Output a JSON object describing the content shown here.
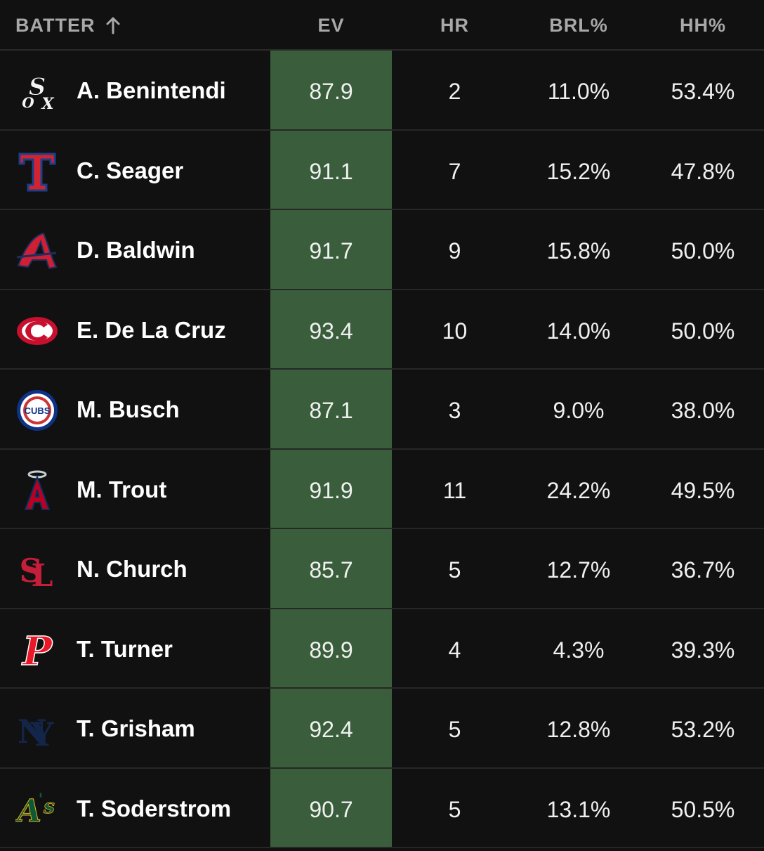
{
  "header": {
    "batter": "BATTER",
    "sort_icon": "arrow-up-icon",
    "ev": "EV",
    "hr": "HR",
    "brl": "BRL%",
    "hh": "HH%"
  },
  "colors": {
    "background": "#111111",
    "ev_highlight": "#3a5e3c",
    "header_text": "#a8a8a8",
    "row_divider": "#272727"
  },
  "rows": [
    {
      "team_logo": "white-sox-logo-icon",
      "name": "A. Benintendi",
      "ev": "87.9",
      "hr": "2",
      "brl": "11.0%",
      "hh": "53.4%"
    },
    {
      "team_logo": "rangers-logo-icon",
      "name": "C. Seager",
      "ev": "91.1",
      "hr": "7",
      "brl": "15.2%",
      "hh": "47.8%"
    },
    {
      "team_logo": "braves-logo-icon",
      "name": "D. Baldwin",
      "ev": "91.7",
      "hr": "9",
      "brl": "15.8%",
      "hh": "50.0%"
    },
    {
      "team_logo": "reds-logo-icon",
      "name": "E. De La Cruz",
      "ev": "93.4",
      "hr": "10",
      "brl": "14.0%",
      "hh": "50.0%"
    },
    {
      "team_logo": "cubs-logo-icon",
      "name": "M. Busch",
      "ev": "87.1",
      "hr": "3",
      "brl": "9.0%",
      "hh": "38.0%",
      "logo_text": "CUBS"
    },
    {
      "team_logo": "angels-logo-icon",
      "name": "M. Trout",
      "ev": "91.9",
      "hr": "11",
      "brl": "24.2%",
      "hh": "49.5%"
    },
    {
      "team_logo": "cardinals-logo-icon",
      "name": "N. Church",
      "ev": "85.7",
      "hr": "5",
      "brl": "12.7%",
      "hh": "36.7%"
    },
    {
      "team_logo": "phillies-logo-icon",
      "name": "T. Turner",
      "ev": "89.9",
      "hr": "4",
      "brl": "4.3%",
      "hh": "39.3%"
    },
    {
      "team_logo": "yankees-logo-icon",
      "name": "T. Grisham",
      "ev": "92.4",
      "hr": "5",
      "brl": "12.8%",
      "hh": "53.2%"
    },
    {
      "team_logo": "athletics-logo-icon",
      "name": "T. Soderstrom",
      "ev": "90.7",
      "hr": "5",
      "brl": "13.1%",
      "hh": "50.5%"
    }
  ]
}
